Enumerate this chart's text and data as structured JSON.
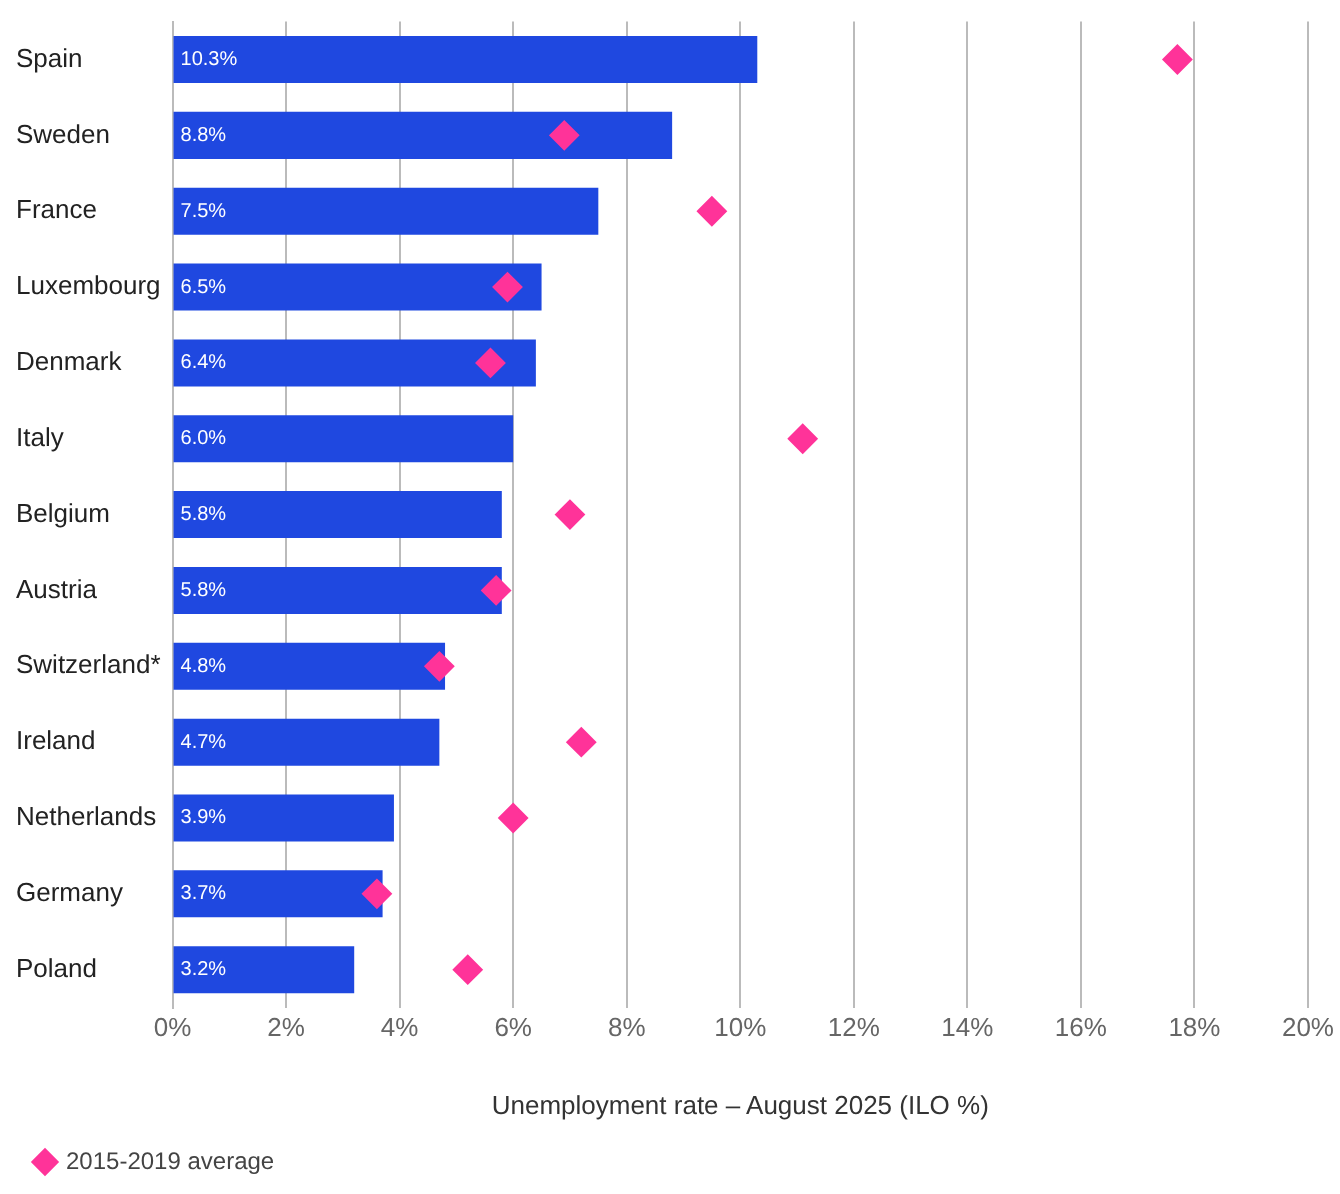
{
  "chart_data": {
    "type": "bar",
    "orientation": "horizontal",
    "xlabel": "Unemployment rate – August 2025 (ILO %)",
    "categories": [
      "Spain",
      "Sweden",
      "France",
      "Luxembourg",
      "Denmark",
      "Italy",
      "Belgium",
      "Austria",
      "Switzerland*",
      "Ireland",
      "Netherlands",
      "Germany",
      "Poland"
    ],
    "series": [
      {
        "type": "bar",
        "color": "#1f48e0",
        "values": [
          10.3,
          8.8,
          7.5,
          6.5,
          6.4,
          6.0,
          5.8,
          5.8,
          4.8,
          4.7,
          3.9,
          3.7,
          3.2
        ],
        "value_labels": [
          "10.3%",
          "8.8%",
          "7.5%",
          "6.5%",
          "6.4%",
          "6.0%",
          "5.8%",
          "5.8%",
          "4.8%",
          "4.7%",
          "3.9%",
          "3.7%",
          "3.2%"
        ]
      },
      {
        "type": "scatter",
        "name": "2015-2019 average",
        "color": "#ff3399",
        "marker": "diamond",
        "values": [
          17.7,
          6.9,
          9.5,
          5.9,
          5.6,
          11.1,
          7.0,
          5.7,
          4.7,
          7.2,
          6.0,
          3.6,
          5.2
        ]
      }
    ],
    "xlim": [
      0,
      20
    ],
    "xticks": [
      {
        "value": 0,
        "label": "0%"
      },
      {
        "value": 2,
        "label": "2%"
      },
      {
        "value": 4,
        "label": "4%"
      },
      {
        "value": 6,
        "label": "6%"
      },
      {
        "value": 8,
        "label": "8%"
      },
      {
        "value": 10,
        "label": "10%"
      },
      {
        "value": 12,
        "label": "12%"
      },
      {
        "value": 14,
        "label": "14%"
      },
      {
        "value": 16,
        "label": "16%"
      },
      {
        "value": 18,
        "label": "18%"
      },
      {
        "value": 20,
        "label": "20%"
      }
    ],
    "grid": "x",
    "legend": "bottom left"
  }
}
